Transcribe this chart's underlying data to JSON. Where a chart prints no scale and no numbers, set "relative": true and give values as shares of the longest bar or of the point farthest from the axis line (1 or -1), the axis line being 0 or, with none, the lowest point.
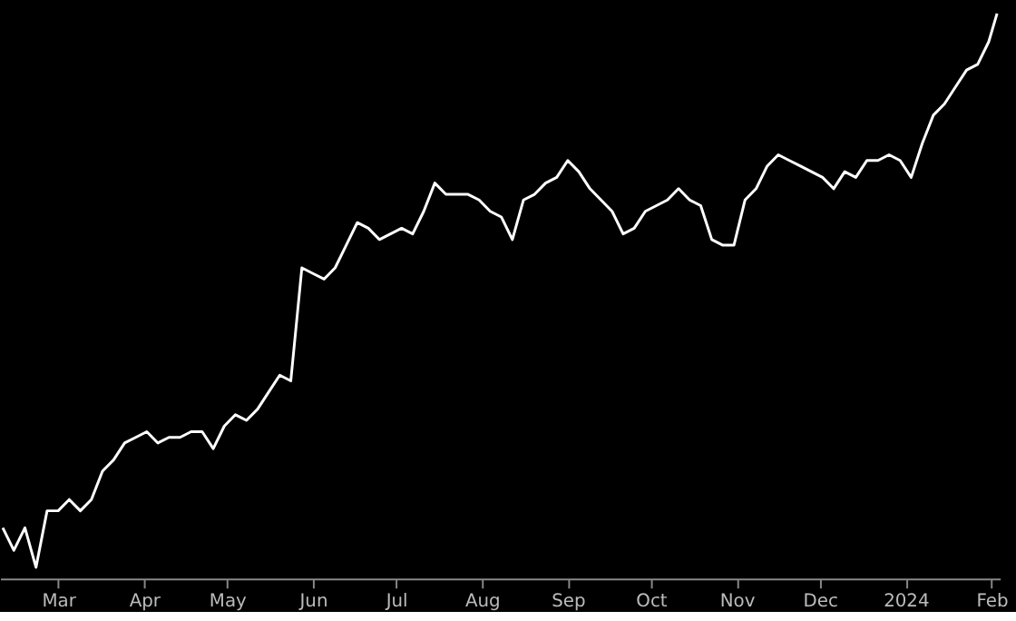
{
  "chart_data": {
    "type": "line",
    "relative": true,
    "grid": false,
    "tick_labels": "x",
    "x": [
      "2023-02-09",
      "2023-02-13",
      "2023-02-17",
      "2023-02-21",
      "2023-02-25",
      "2023-03-01",
      "2023-03-05",
      "2023-03-09",
      "2023-03-13",
      "2023-03-17",
      "2023-03-21",
      "2023-03-25",
      "2023-03-29",
      "2023-04-02",
      "2023-04-06",
      "2023-04-10",
      "2023-04-14",
      "2023-04-18",
      "2023-04-22",
      "2023-04-26",
      "2023-04-30",
      "2023-05-04",
      "2023-05-08",
      "2023-05-12",
      "2023-05-16",
      "2023-05-20",
      "2023-05-24",
      "2023-05-28",
      "2023-06-01",
      "2023-06-05",
      "2023-06-09",
      "2023-06-13",
      "2023-06-17",
      "2023-06-21",
      "2023-06-25",
      "2023-06-29",
      "2023-07-03",
      "2023-07-07",
      "2023-07-11",
      "2023-07-15",
      "2023-07-19",
      "2023-07-23",
      "2023-07-27",
      "2023-07-31",
      "2023-08-04",
      "2023-08-08",
      "2023-08-12",
      "2023-08-16",
      "2023-08-20",
      "2023-08-24",
      "2023-08-28",
      "2023-09-01",
      "2023-09-05",
      "2023-09-09",
      "2023-09-13",
      "2023-09-17",
      "2023-09-21",
      "2023-09-25",
      "2023-09-29",
      "2023-10-03",
      "2023-10-07",
      "2023-10-11",
      "2023-10-15",
      "2023-10-19",
      "2023-10-23",
      "2023-10-27",
      "2023-10-31",
      "2023-11-04",
      "2023-11-08",
      "2023-11-12",
      "2023-11-16",
      "2023-11-20",
      "2023-11-24",
      "2023-11-28",
      "2023-12-02",
      "2023-12-06",
      "2023-12-10",
      "2023-12-14",
      "2023-12-18",
      "2023-12-22",
      "2023-12-26",
      "2023-12-30",
      "2024-01-03",
      "2024-01-07",
      "2024-01-11",
      "2024-01-15",
      "2024-01-19",
      "2024-01-23",
      "2024-01-27",
      "2024-01-31",
      "2024-02-03"
    ],
    "series": [
      {
        "color": "#ffffff",
        "values": [
          0.09,
          0.05,
          0.09,
          0.02,
          0.12,
          0.12,
          0.14,
          0.12,
          0.14,
          0.19,
          0.21,
          0.24,
          0.25,
          0.26,
          0.24,
          0.25,
          0.25,
          0.26,
          0.26,
          0.23,
          0.27,
          0.29,
          0.28,
          0.3,
          0.33,
          0.36,
          0.35,
          0.55,
          0.54,
          0.53,
          0.55,
          0.59,
          0.63,
          0.62,
          0.6,
          0.61,
          0.62,
          0.61,
          0.65,
          0.7,
          0.68,
          0.68,
          0.68,
          0.67,
          0.65,
          0.64,
          0.6,
          0.67,
          0.68,
          0.7,
          0.71,
          0.74,
          0.72,
          0.69,
          0.67,
          0.65,
          0.61,
          0.62,
          0.65,
          0.66,
          0.67,
          0.69,
          0.67,
          0.66,
          0.6,
          0.59,
          0.59,
          0.67,
          0.69,
          0.73,
          0.75,
          0.74,
          0.73,
          0.72,
          0.71,
          0.69,
          0.72,
          0.71,
          0.74,
          0.74,
          0.75,
          0.74,
          0.71,
          0.77,
          0.82,
          0.84,
          0.87,
          0.9,
          0.91,
          0.95,
          1
        ]
      }
    ],
    "xlim": [
      "2023-02-08",
      "2024-02-04"
    ],
    "xticks": [
      {
        "value": "2023-03-01",
        "label": "Mar"
      },
      {
        "value": "2023-04-01",
        "label": "Apr"
      },
      {
        "value": "2023-05-01",
        "label": "May"
      },
      {
        "value": "2023-06-01",
        "label": "Jun"
      },
      {
        "value": "2023-07-01",
        "label": "Jul"
      },
      {
        "value": "2023-08-01",
        "label": "Aug"
      },
      {
        "value": "2023-09-01",
        "label": "Sep"
      },
      {
        "value": "2023-10-01",
        "label": "Oct"
      },
      {
        "value": "2023-11-01",
        "label": "Nov"
      },
      {
        "value": "2023-12-01",
        "label": "Dec"
      },
      {
        "value": "2024-01-01",
        "label": "2024"
      },
      {
        "value": "2024-02-01",
        "label": "Feb"
      }
    ]
  }
}
